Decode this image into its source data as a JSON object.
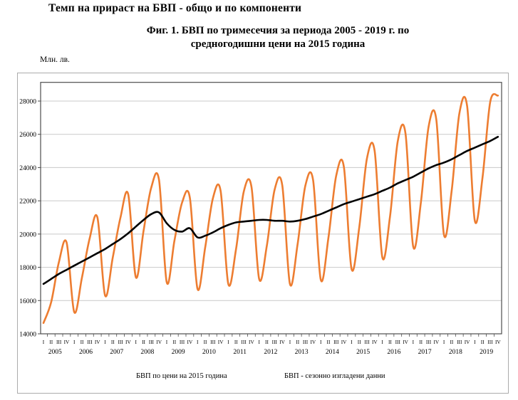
{
  "page_title": "Темп на прираст на БВП - общо и по компоненти",
  "figure": {
    "title_line1": "Фиг. 1. БВП по тримесечия за периода 2005 - 2019 г. по",
    "title_line2": "средногодишни цени на 2015 година",
    "y_unit": "Млн. лв."
  },
  "legend": {
    "series1_label": "БВП по цени на 2015 година",
    "series2_label": "БВП  - сезонно изгладени данни"
  },
  "colors": {
    "series1": "#ED7D31",
    "series2": "#000000",
    "gridline": "#C9C9C9",
    "plot_border": "#4D4D4D",
    "outer_border": "#ABABAB",
    "tick": "#4D4D4D",
    "label": "#000000"
  },
  "chart_data": {
    "type": "line",
    "title": "Фиг. 1. БВП по тримесечия за периода 2005 - 2019 г. по средногодишни цени на 2015 година",
    "ylabel": "Млн. лв.",
    "xlabel": "",
    "grid": "horizontal-only",
    "legend_position": "bottom",
    "ylim": [
      14000,
      29100
    ],
    "yticks": [
      14000,
      16000,
      18000,
      20000,
      22000,
      24000,
      26000,
      28000
    ],
    "years": [
      2005,
      2006,
      2007,
      2008,
      2009,
      2010,
      2011,
      2012,
      2013,
      2014,
      2015,
      2016,
      2017,
      2018,
      2019
    ],
    "quarter_labels": [
      "I",
      "II",
      "III",
      "IV"
    ],
    "series": [
      {
        "name": "БВП по цени на 2015 година",
        "color": "#ED7D31",
        "values": [
          14650,
          15900,
          18300,
          19500,
          15300,
          17400,
          19750,
          21000,
          16300,
          18600,
          21000,
          22400,
          17400,
          20200,
          22800,
          23250,
          17100,
          19600,
          21900,
          22200,
          16700,
          19200,
          22150,
          22600,
          17000,
          19100,
          22550,
          22850,
          17300,
          19300,
          22650,
          22950,
          17000,
          19400,
          22900,
          23250,
          17250,
          19800,
          23500,
          24050,
          17900,
          20400,
          24550,
          25000,
          18600,
          21100,
          25600,
          26050,
          19250,
          21900,
          26450,
          26900,
          19950,
          22600,
          27250,
          27700,
          20800,
          23400,
          27950,
          28330
        ]
      },
      {
        "name": "БВП - сезонно изгладени данни",
        "color": "#000000",
        "values": [
          17000,
          17300,
          17600,
          17850,
          18100,
          18350,
          18600,
          18850,
          19100,
          19400,
          19700,
          20050,
          20450,
          20850,
          21200,
          21300,
          20650,
          20250,
          20150,
          20350,
          19800,
          19900,
          20100,
          20350,
          20550,
          20700,
          20750,
          20800,
          20850,
          20850,
          20800,
          20800,
          20750,
          20800,
          20900,
          21050,
          21200,
          21400,
          21600,
          21800,
          21950,
          22100,
          22250,
          22400,
          22600,
          22800,
          23050,
          23250,
          23450,
          23700,
          23950,
          24150,
          24300,
          24500,
          24750,
          25000,
          25200,
          25400,
          25600,
          25850
        ]
      }
    ]
  }
}
